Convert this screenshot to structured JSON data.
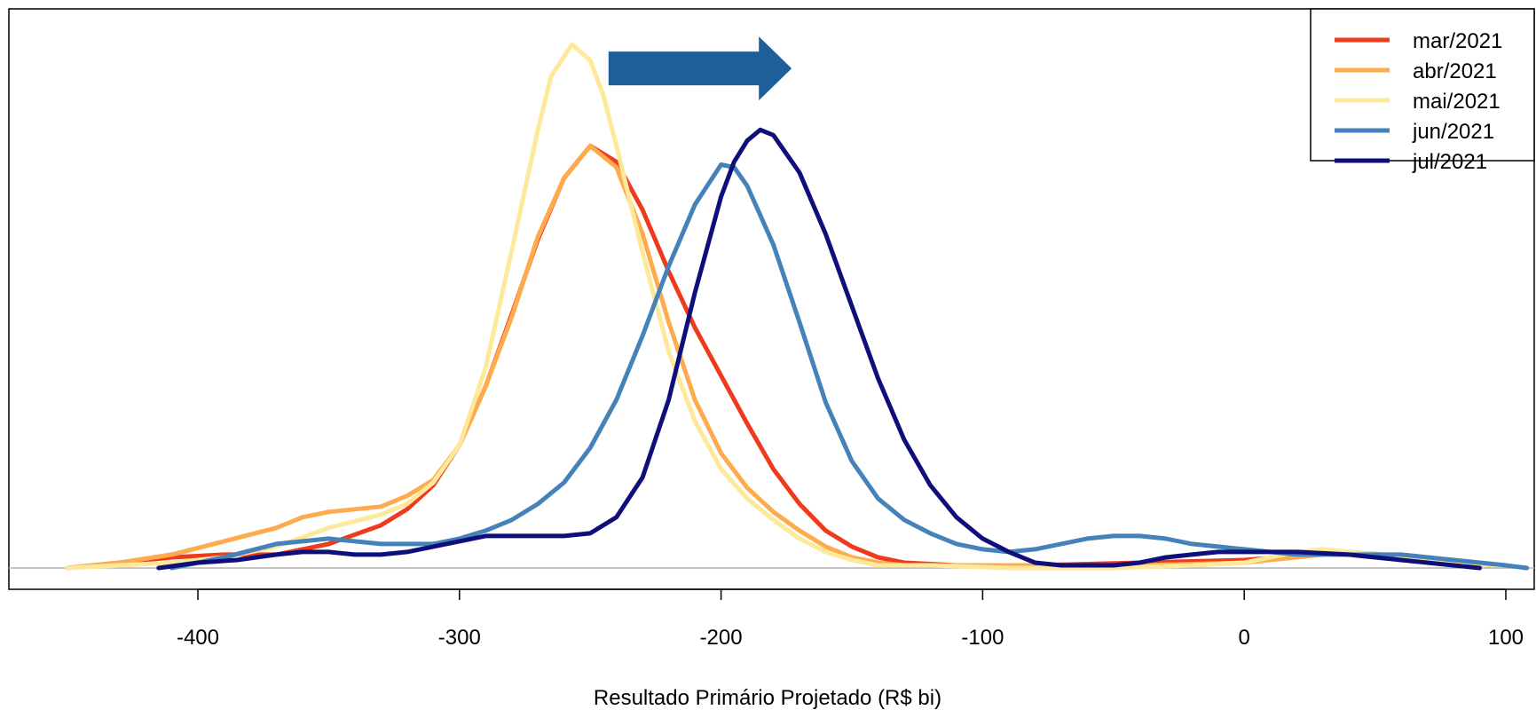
{
  "chart_data": {
    "type": "line",
    "title": "",
    "xlabel": "Resultado Primário Projetado (R$ bi)",
    "ylabel": "",
    "xlim": [
      -460,
      110
    ],
    "ylim": [
      -0.0008,
      0.0196
    ],
    "x_ticks": [
      -400,
      -300,
      -200,
      -100,
      0,
      100
    ],
    "x_tick_labels": [
      "-400",
      "-300",
      "-200",
      "-100",
      "0",
      "100"
    ],
    "grid": false,
    "legend_position": "top-right",
    "baseline": 0,
    "annotations": [
      {
        "type": "arrow",
        "direction": "right",
        "color": "#1f5f99",
        "from_x": -243,
        "to_x": -173,
        "y": 0.0187
      }
    ],
    "series": [
      {
        "name": "mar/2021",
        "color": "#ee3b1e",
        "x": [
          -450,
          -430,
          -410,
          -390,
          -370,
          -350,
          -330,
          -320,
          -310,
          -300,
          -290,
          -280,
          -270,
          -260,
          -250,
          -240,
          -230,
          -220,
          -210,
          -200,
          -190,
          -180,
          -170,
          -160,
          -150,
          -140,
          -130,
          -110,
          -80,
          -40,
          0,
          40,
          80,
          95
        ],
        "y": [
          0.0,
          0.0002,
          0.0004,
          0.0005,
          0.0005,
          0.0009,
          0.0016,
          0.0022,
          0.0031,
          0.0046,
          0.0068,
          0.0095,
          0.0123,
          0.0146,
          0.0158,
          0.0152,
          0.0134,
          0.0111,
          0.009,
          0.0072,
          0.0054,
          0.0037,
          0.0024,
          0.0014,
          0.0008,
          0.0004,
          0.0002,
          0.0001,
          0.0001,
          0.0002,
          0.0003,
          0.0006,
          0.0002,
          0.0001
        ]
      },
      {
        "name": "abr/2021",
        "color": "#fdab4c",
        "x": [
          -450,
          -430,
          -410,
          -390,
          -370,
          -360,
          -350,
          -340,
          -330,
          -320,
          -310,
          -300,
          -290,
          -280,
          -270,
          -260,
          -250,
          -240,
          -230,
          -220,
          -210,
          -200,
          -190,
          -180,
          -170,
          -160,
          -150,
          -140,
          -130,
          -110,
          -80,
          -40,
          0,
          40,
          80,
          95
        ],
        "y": [
          0.0,
          0.0002,
          0.0005,
          0.001,
          0.0015,
          0.0019,
          0.0021,
          0.0022,
          0.0023,
          0.0027,
          0.0033,
          0.0046,
          0.0068,
          0.0094,
          0.0124,
          0.0146,
          0.0158,
          0.015,
          0.0125,
          0.0092,
          0.0063,
          0.0043,
          0.003,
          0.0021,
          0.0014,
          0.0008,
          0.0004,
          0.0002,
          0.0001,
          0.0001,
          0.0001,
          0.0001,
          0.0002,
          0.0006,
          0.0003,
          0.0001
        ]
      },
      {
        "name": "mai/2021",
        "color": "#fee89a",
        "x": [
          -450,
          -430,
          -410,
          -390,
          -370,
          -350,
          -330,
          -320,
          -310,
          -300,
          -290,
          -280,
          -270,
          -265,
          -257,
          -250,
          -245,
          -240,
          -230,
          -220,
          -210,
          -200,
          -190,
          -180,
          -170,
          -160,
          -150,
          -140,
          -120,
          -90,
          -50,
          -20,
          0,
          20,
          30,
          50,
          80,
          95
        ],
        "y": [
          0.0,
          0.0001,
          0.0002,
          0.0004,
          0.0008,
          0.0015,
          0.002,
          0.0024,
          0.0032,
          0.0046,
          0.0075,
          0.0119,
          0.0164,
          0.0184,
          0.0196,
          0.019,
          0.0177,
          0.0158,
          0.0118,
          0.0081,
          0.0055,
          0.0037,
          0.0026,
          0.0018,
          0.0011,
          0.0006,
          0.0003,
          0.0001,
          0.0001,
          0.0,
          0.0,
          0.0001,
          0.0002,
          0.0006,
          0.0007,
          0.0005,
          0.0002,
          0.0001
        ]
      },
      {
        "name": "jun/2021",
        "color": "#4582b9",
        "x": [
          -410,
          -390,
          -370,
          -350,
          -330,
          -320,
          -310,
          -300,
          -290,
          -280,
          -270,
          -260,
          -250,
          -240,
          -230,
          -220,
          -210,
          -200,
          -195,
          -190,
          -180,
          -170,
          -160,
          -150,
          -140,
          -130,
          -120,
          -110,
          -100,
          -90,
          -80,
          -70,
          -60,
          -50,
          -40,
          -30,
          -20,
          -10,
          0,
          10,
          20,
          40,
          60,
          80,
          100,
          108
        ],
        "y": [
          0.0,
          0.0004,
          0.0009,
          0.0011,
          0.0009,
          0.0009,
          0.0009,
          0.0011,
          0.0014,
          0.0018,
          0.0024,
          0.0032,
          0.0045,
          0.0063,
          0.0087,
          0.0113,
          0.0136,
          0.0151,
          0.015,
          0.0143,
          0.0121,
          0.0092,
          0.0062,
          0.004,
          0.0026,
          0.0018,
          0.0013,
          0.0009,
          0.0007,
          0.0006,
          0.0007,
          0.0009,
          0.0011,
          0.0012,
          0.0012,
          0.0011,
          0.0009,
          0.0008,
          0.0007,
          0.0006,
          0.0005,
          0.0005,
          0.0005,
          0.0003,
          0.0001,
          0.0
        ]
      },
      {
        "name": "jul/2021",
        "color": "#0e0f7b",
        "x": [
          -415,
          -400,
          -385,
          -370,
          -360,
          -350,
          -340,
          -330,
          -320,
          -310,
          -300,
          -290,
          -280,
          -270,
          -260,
          -250,
          -240,
          -230,
          -220,
          -210,
          -200,
          -195,
          -190,
          -185,
          -180,
          -170,
          -160,
          -150,
          -140,
          -130,
          -120,
          -110,
          -100,
          -90,
          -80,
          -70,
          -60,
          -50,
          -40,
          -30,
          -20,
          -10,
          0,
          10,
          20,
          40,
          60,
          80,
          90
        ],
        "y": [
          0.0,
          0.0002,
          0.0003,
          0.0005,
          0.0006,
          0.0006,
          0.0005,
          0.0005,
          0.0006,
          0.0008,
          0.001,
          0.0012,
          0.0012,
          0.0012,
          0.0012,
          0.0013,
          0.0019,
          0.0034,
          0.0063,
          0.0103,
          0.0139,
          0.0152,
          0.016,
          0.0164,
          0.0162,
          0.0148,
          0.0125,
          0.0098,
          0.0071,
          0.0048,
          0.0031,
          0.0019,
          0.0011,
          0.0006,
          0.0002,
          0.0001,
          0.0001,
          0.0001,
          0.0002,
          0.0004,
          0.0005,
          0.0006,
          0.0006,
          0.0006,
          0.0006,
          0.0005,
          0.0003,
          0.0001,
          0.0
        ]
      }
    ]
  }
}
